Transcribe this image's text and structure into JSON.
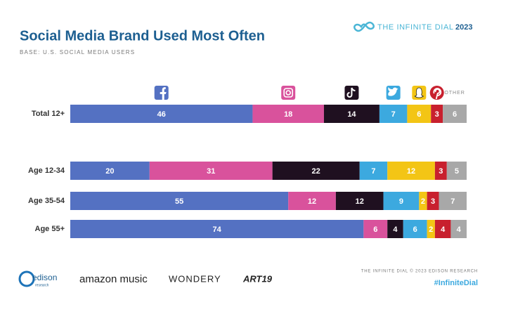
{
  "chart_data": {
    "type": "stacked-barh",
    "title": "Social Media Brand Used Most Often",
    "subtitle": "BASE: U.S. SOCIAL MEDIA USERS",
    "categories": [
      "Total 12+",
      "Age 12-34",
      "Age 35-54",
      "Age 55+"
    ],
    "xlim": [
      0,
      100
    ],
    "series": [
      {
        "color": "#5471c2",
        "values": [
          46,
          20,
          55,
          74
        ]
      },
      {
        "color": "#d9529c",
        "values": [
          18,
          31,
          12,
          6
        ]
      },
      {
        "color": "#1f1020",
        "values": [
          14,
          22,
          12,
          4
        ]
      },
      {
        "color": "#3ca9df",
        "values": [
          7,
          7,
          9,
          6
        ]
      },
      {
        "color": "#f3c515",
        "values": [
          6,
          12,
          2,
          2
        ]
      },
      {
        "color": "#c8202e",
        "values": [
          3,
          3,
          3,
          4
        ]
      },
      {
        "name": "OTHER",
        "color": "#a8a8a8",
        "values": [
          6,
          5,
          7,
          4
        ]
      }
    ]
  },
  "branding": {
    "report": "THE INFINITE DIAL",
    "year": "2023",
    "footer": "THE INFINITE DIAL  © 2023 EDISON RESEARCH",
    "hashtag": "#InfiniteDial",
    "logos": [
      "edison",
      "research",
      "amazon music",
      "WONDERY",
      "ART19"
    ]
  }
}
